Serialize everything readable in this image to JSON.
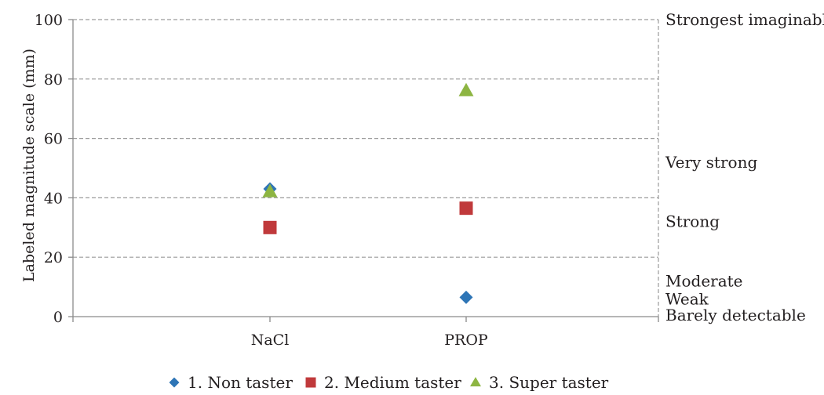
{
  "chart_data": {
    "type": "scatter",
    "categories": [
      "NaCl",
      "PROP"
    ],
    "series": [
      {
        "name": "1. Non taster",
        "marker": "diamond",
        "color": "#2e75b6",
        "values": [
          43,
          6.5
        ]
      },
      {
        "name": "2. Medium taster",
        "marker": "square",
        "color": "#c0393b",
        "values": [
          30,
          36.5
        ]
      },
      {
        "name": "3. Super taster",
        "marker": "triangle",
        "color": "#8db542",
        "values": [
          42,
          76
        ]
      }
    ],
    "title": "",
    "xlabel": "",
    "ylabel": "Labeled magnitude scale (mm)",
    "ylim": [
      0,
      100
    ],
    "yticks": [
      0,
      20,
      40,
      60,
      80,
      100
    ],
    "ytick_labels": [
      "0",
      "20",
      "40",
      "60",
      "80",
      "100"
    ],
    "grid": true,
    "legend": "bottom",
    "secondary_axis_labels": [
      {
        "text": "Strongest imaginable",
        "value": 100
      },
      {
        "text": "Very strong",
        "value": 52
      },
      {
        "text": "Strong",
        "value": 32
      },
      {
        "text": "Moderate",
        "value": 12
      },
      {
        "text": "Weak",
        "value": 6
      },
      {
        "text": "Barely detectable",
        "value": 0.5
      }
    ]
  }
}
